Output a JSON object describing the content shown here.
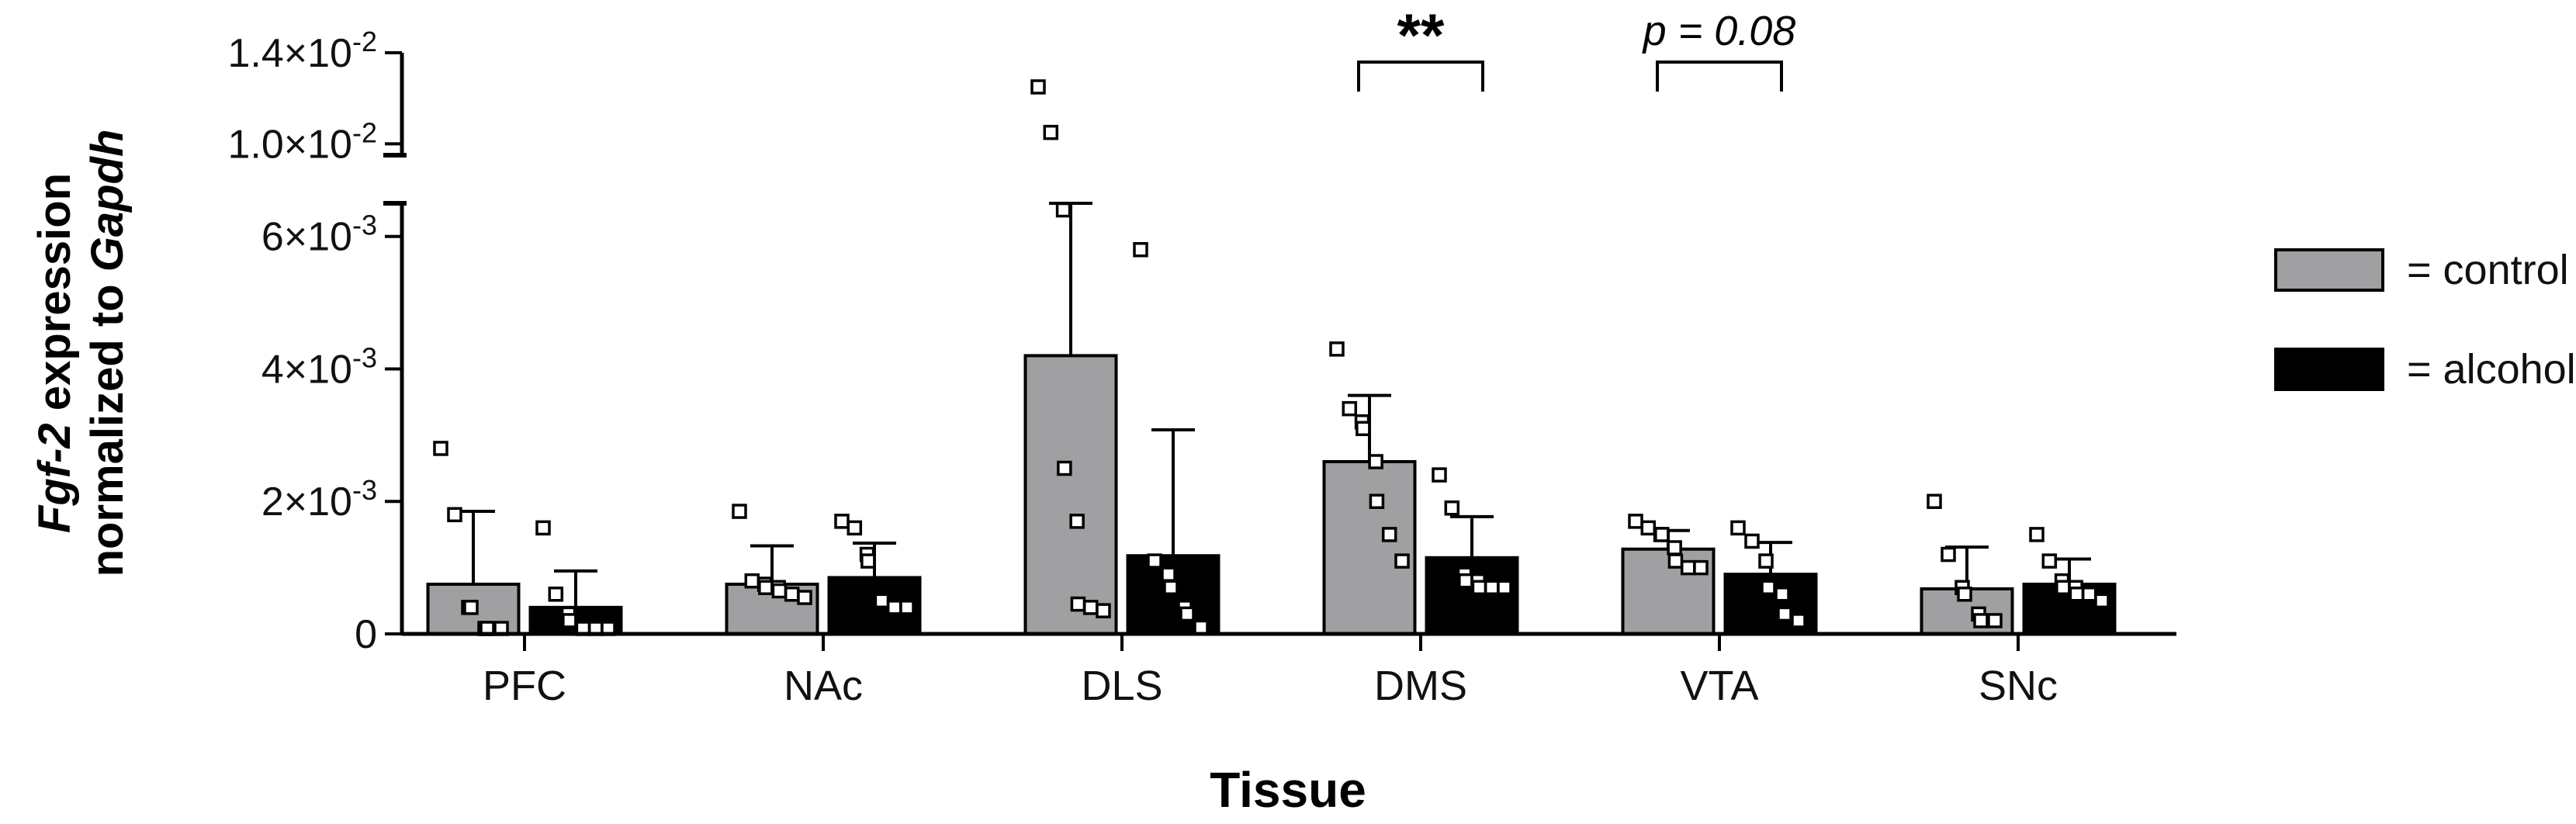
{
  "chart_data": {
    "type": "bar",
    "title": "",
    "xlabel": "Tissue",
    "ylabel_line1_italic": "Fgf-2",
    "ylabel_line1_rest": " expression",
    "ylabel_line2_prefix": "normalized to ",
    "ylabel_line2_italic": "Gapdh",
    "categories": [
      "PFC",
      "NAc",
      "DLS",
      "DMS",
      "VTA",
      "SNc"
    ],
    "y_axis": {
      "broken": true,
      "lower_segment_ylim": [
        0,
        0.0065
      ],
      "upper_segment_ylim": [
        0.0095,
        0.014
      ],
      "lower_ticks": [
        {
          "value": 0,
          "base": "0",
          "exp": ""
        },
        {
          "value": 0.002,
          "base": "2×10",
          "exp": "-3"
        },
        {
          "value": 0.004,
          "base": "4×10",
          "exp": "-3"
        },
        {
          "value": 0.006,
          "base": "6×10",
          "exp": "-3"
        }
      ],
      "upper_ticks": [
        {
          "value": 0.01,
          "base": "1.0×10",
          "exp": "-2"
        },
        {
          "value": 0.014,
          "base": "1.4×10",
          "exp": "-2"
        }
      ]
    },
    "series": [
      {
        "name": "control",
        "legend_label": "= control",
        "color": "#a0a0a3",
        "means": [
          0.00075,
          0.00075,
          0.0042,
          0.0026,
          0.00128,
          0.00068
        ],
        "sd": [
          0.0011,
          0.00058,
          0.0023,
          0.001,
          0.00028,
          0.00063
        ],
        "points": [
          [
            0.0028,
            0.0018,
            0.0004,
            0.0004,
            5e-05,
            5e-05,
            5e-05
          ],
          [
            0.00185,
            0.0008,
            0.00075,
            0.0007,
            0.0007,
            0.00065,
            0.0006,
            0.00055
          ],
          [
            0.0125,
            0.0105,
            0.0064,
            0.0025,
            0.0017,
            0.00045,
            0.0004,
            0.00035
          ],
          [
            0.0043,
            0.0034,
            0.0032,
            0.0031,
            0.0026,
            0.002,
            0.0015,
            0.0011
          ],
          [
            0.0017,
            0.0016,
            0.0015,
            0.0015,
            0.0013,
            0.0011,
            0.001,
            0.001
          ],
          [
            0.002,
            0.0012,
            0.0007,
            0.0006,
            0.0003,
            0.0002,
            0.0002
          ]
        ]
      },
      {
        "name": "alcohol",
        "legend_label": "= alcohol",
        "color": "#000000",
        "means": [
          0.0004,
          0.00085,
          0.00118,
          0.00115,
          0.0009,
          0.00075
        ],
        "sd": [
          0.00055,
          0.00052,
          0.0019,
          0.00062,
          0.00048,
          0.00038
        ],
        "points": [
          [
            0.0016,
            0.0006,
            0.0003,
            0.0002,
            0.0001,
            5e-05,
            5e-05,
            5e-05
          ],
          [
            0.0017,
            0.0016,
            0.0012,
            0.0011,
            0.0005,
            0.0005,
            0.0004,
            0.0004
          ],
          [
            0.0058,
            0.0011,
            0.0009,
            0.0007,
            0.0004,
            0.0003,
            0.0001
          ],
          [
            0.0024,
            0.0019,
            0.0009,
            0.0008,
            0.0008,
            0.0007,
            0.0007,
            0.0007
          ],
          [
            0.0016,
            0.0014,
            0.0011,
            0.0007,
            0.0006,
            0.0003,
            0.0002
          ],
          [
            0.0015,
            0.0011,
            0.0008,
            0.0007,
            0.0007,
            0.0006,
            0.0006,
            0.0005
          ]
        ]
      }
    ],
    "annotations": [
      {
        "category": "DMS",
        "text": "**",
        "style": "bold"
      },
      {
        "category": "VTA",
        "text": "p = 0.08",
        "style": "italic"
      }
    ],
    "legend_position": "right",
    "grid": false
  }
}
